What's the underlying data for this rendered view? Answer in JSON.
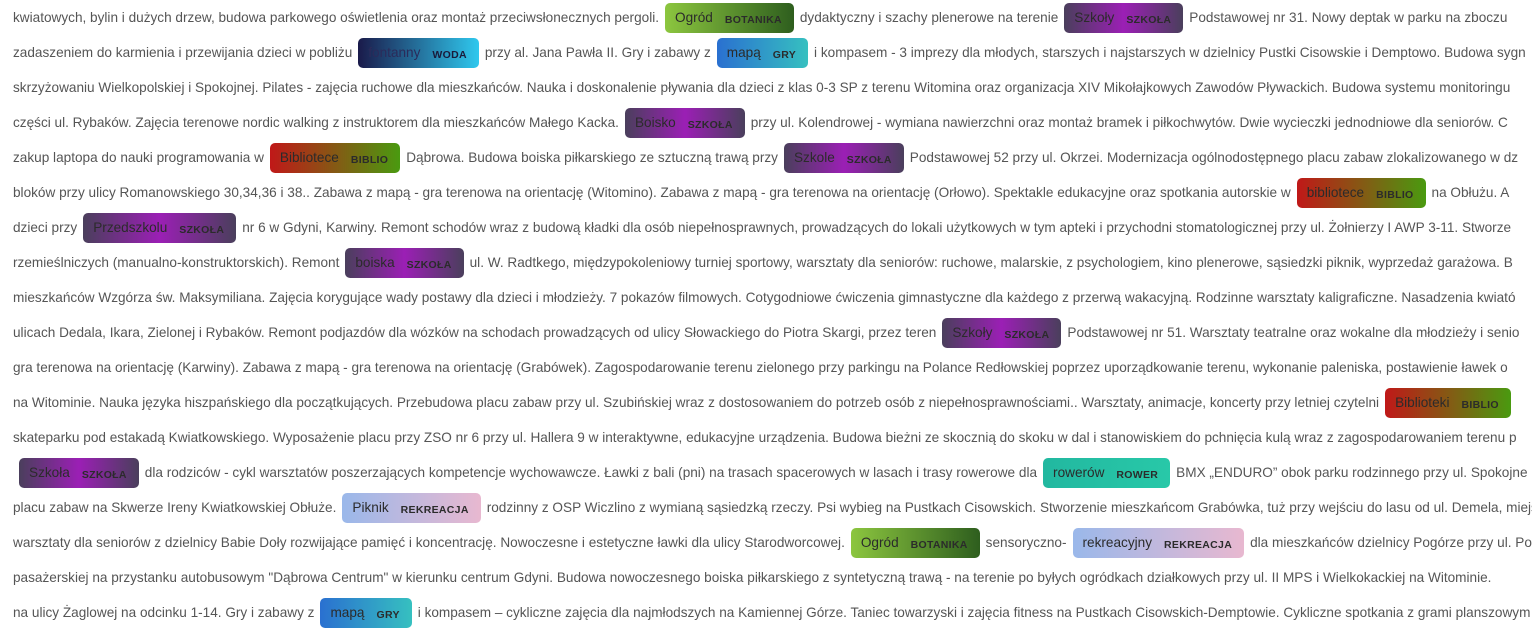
{
  "category_colors": {
    "BOTANIKA": [
      "#8cc63f",
      "#2e5e1e"
    ],
    "SZKOŁA": [
      "#4a3f5c",
      "#9b1fb5",
      "#4a3f5c"
    ],
    "WODA": [
      "#1a1a4a",
      "#2fc8ee"
    ],
    "GRY": [
      "#2a70d0",
      "#36c0c0"
    ],
    "BIBLIO": [
      "#c01818",
      "#4a9a10"
    ],
    "ROWER": [
      "#22b8a0",
      "#28c8a8"
    ],
    "REKREACJA": [
      "#9ab8ea",
      "#e8b8d0"
    ]
  },
  "lines": [
    [
      {
        "t": "kwiatowych, bylin i dużych drzew, budowa parkowego oświetlenia oraz montaż przeciwsłonecznych pergoli."
      },
      {
        "tag": "Ogród",
        "cat": "BOTANIKA"
      },
      {
        "t": "dydaktyczny i szachy plenerowe na terenie"
      },
      {
        "tag": "Szkoły",
        "cat": "SZKOŁA"
      },
      {
        "t": "Podstawowej nr 31. Nowy deptak w parku na zboczu"
      }
    ],
    [
      {
        "t": "zadaszeniem do karmienia i przewijania dzieci w pobliżu"
      },
      {
        "tag": "fontanny",
        "cat": "WODA"
      },
      {
        "t": "przy al. Jana Pawła II. Gry i zabawy z"
      },
      {
        "tag": "mapą",
        "cat": "GRY"
      },
      {
        "t": "i kompasem - 3 imprezy dla młodych, starszych i najstarszych w dzielnicy Pustki Cisowskie i Demptowo. Budowa sygn"
      }
    ],
    [
      {
        "t": "skrzyżowaniu Wielkopolskiej i Spokojnej. Pilates - zajęcia ruchowe dla mieszkańców. Nauka i doskonalenie pływania dla dzieci z klas 0-3 SP z terenu Witomina oraz organizacja XIV Mikołajkowych Zawodów Pływackich. Budowa systemu monitoringu"
      }
    ],
    [
      {
        "t": "części ul. Rybaków. Zajęcia terenowe nordic walking z instruktorem dla mieszkańców Małego Kacka."
      },
      {
        "tag": "Boisko",
        "cat": "SZKOŁA"
      },
      {
        "t": "przy ul. Kolendrowej - wymiana nawierzchni oraz montaż bramek i piłkochwytów. Dwie wycieczki jednodniowe dla seniorów. C"
      }
    ],
    [
      {
        "t": "zakup laptopa do nauki programowania w"
      },
      {
        "tag": "Bibliotece",
        "cat": "BIBLIO"
      },
      {
        "t": "Dąbrowa. Budowa boiska piłkarskiego ze sztuczną trawą przy"
      },
      {
        "tag": "Szkole",
        "cat": "SZKOŁA"
      },
      {
        "t": "Podstawowej 52 przy ul. Okrzei. Modernizacja ogólnodostępnego placu zabaw zlokalizowanego w dz"
      }
    ],
    [
      {
        "t": "bloków przy ulicy Romanowskiego 30,34,36 i 38.. Zabawa z mapą - gra terenowa na orientację (Witomino). Zabawa z mapą - gra terenowa na orientację (Orłowo). Spektakle edukacyjne oraz spotkania autorskie w"
      },
      {
        "tag": "bibliotece",
        "cat": "BIBLIO"
      },
      {
        "t": "na Obłużu. A"
      }
    ],
    [
      {
        "t": "dzieci przy"
      },
      {
        "tag": "Przedszkolu",
        "cat": "SZKOŁA"
      },
      {
        "t": "nr 6 w Gdyni, Karwiny. Remont schodów wraz z budową kładki dla osób niepełnosprawnych, prowadzących do lokali użytkowych w tym apteki i przychodni stomatologicznej przy ul. Żołnierzy I AWP 3-11. Stworze"
      }
    ],
    [
      {
        "t": "rzemieślniczych (manualno-konstruktorskich). Remont"
      },
      {
        "tag": "boiska",
        "cat": "SZKOŁA"
      },
      {
        "t": "ul. W. Radtkego, międzypokoleniowy turniej sportowy, warsztaty dla seniorów: ruchowe, malarskie, z psychologiem, kino plenerowe, sąsiedzki piknik, wyprzedaż garażowa. B"
      }
    ],
    [
      {
        "t": "mieszkańców Wzgórza św. Maksymiliana. Zajęcia korygujące wady postawy dla dzieci i młodzieży. 7 pokazów filmowych. Cotygodniowe ćwiczenia gimnastyczne dla każdego z przerwą wakacyjną. Rodzinne warsztaty kaligraficzne. Nasadzenia kwiató"
      }
    ],
    [
      {
        "t": "ulicach Dedala, Ikara, Zielonej i Rybaków. Remont podjazdów dla wózków na schodach prowadzących od ulicy Słowackiego do Piotra Skargi, przez teren"
      },
      {
        "tag": "Szkoły",
        "cat": "SZKOŁA"
      },
      {
        "t": "Podstawowej nr 51. Warsztaty teatralne oraz wokalne dla młodzieży i senio"
      }
    ],
    [
      {
        "t": "gra terenowa na orientację (Karwiny). Zabawa z mapą - gra terenowa na orientację (Grabówek). Zagospodarowanie terenu zielonego przy parkingu na Polance Redłowskiej poprzez uporządkowanie terenu, wykonanie paleniska, postawienie ławek o"
      }
    ],
    [
      {
        "t": "na Witominie. Nauka języka hiszpańskiego dla początkujących. Przebudowa placu zabaw przy ul. Szubińskiej wraz z dostosowaniem do potrzeb osób z niepełnosprawnościami.. Warsztaty, animacje, koncerty przy letniej czytelni"
      },
      {
        "tag": "Biblioteki",
        "cat": "BIBLIO"
      }
    ],
    [
      {
        "t": "skateparku pod estakadą Kwiatkowskiego. Wyposażenie placu przy ZSO nr 6 przy ul. Hallera 9 w interaktywne, edukacyjne urządzenia. Budowa bieżni ze skocznią do skoku w dal i stanowiskiem do pchnięcia kulą wraz z zagospodarowaniem terenu p"
      }
    ],
    [
      {
        "tag": "Szkoła",
        "cat": "SZKOŁA"
      },
      {
        "t": "dla rodziców - cykl warsztatów poszerzających kompetencje wychowawcze. Ławki z bali (pni) na trasach spacerowych w lasach i trasy rowerowe dla"
      },
      {
        "tag": "rowerów",
        "cat": "ROWER"
      },
      {
        "t": "BMX „ENDURO” obok parku rodzinnego przy ul. Spokojne"
      }
    ],
    [
      {
        "t": "placu zabaw na Skwerze Ireny Kwiatkowskiej Obłuże."
      },
      {
        "tag": "Piknik",
        "cat": "REKREACJA"
      },
      {
        "t": "rodzinny z OSP Wiczlino z wymianą sąsiedzką rzeczy. Psi wybieg na Pustkach Cisowskich. Stworzenie mieszkańcom Grabówka, tuż przy wejściu do lasu od ul. Demela, miejsc"
      }
    ],
    [
      {
        "t": "warsztaty dla seniorów z dzielnicy Babie Doły rozwijające pamięć i koncentrację. Nowoczesne i estetyczne ławki dla ulicy Starodworcowej."
      },
      {
        "tag": "Ogród",
        "cat": "BOTANIKA"
      },
      {
        "t": "sensoryczno-"
      },
      {
        "tag": "rekreacyjny",
        "cat": "REKREACJA"
      },
      {
        "t": "dla mieszkańców dzielnicy Pogórze przy ul. Po"
      }
    ],
    [
      {
        "t": "pasażerskiej na przystanku autobusowym \"Dąbrowa Centrum\" w kierunku centrum Gdyni. Budowa nowoczesnego boiska piłkarskiego z syntetyczną trawą - na terenie po byłych ogródkach działkowych przy ul. II MPS i Wielkokackiej na Witominie."
      }
    ],
    [
      {
        "t": "na ulicy Żaglowej na odcinku 1-14. Gry i zabawy z"
      },
      {
        "tag": "mapą",
        "cat": "GRY"
      },
      {
        "t": "i kompasem – cykliczne zajęcia dla najmłodszych na Kamiennej Górze. Taniec towarzyski i zajęcia fitness na Pustkach Cisowskich-Demptowie. Cykliczne spotkania z grami planszowym"
      }
    ]
  ]
}
